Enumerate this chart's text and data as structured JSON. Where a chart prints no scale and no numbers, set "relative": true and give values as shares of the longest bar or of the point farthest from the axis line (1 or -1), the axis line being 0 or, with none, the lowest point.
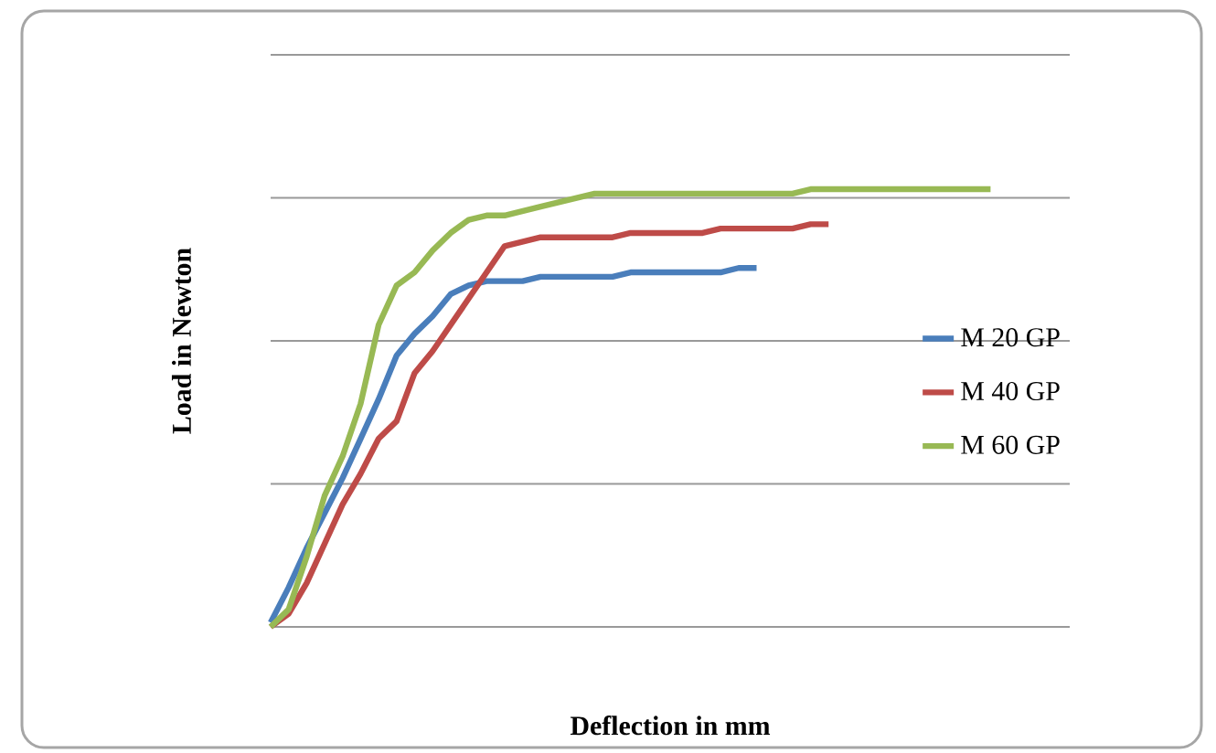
{
  "chart_data": {
    "type": "line",
    "relative": true,
    "xlabel": "Deflection in mm",
    "ylabel": "Load in Newton",
    "categories": [
      null,
      null,
      null,
      null,
      null,
      null,
      null,
      null,
      null,
      null,
      null,
      null,
      null,
      null,
      null,
      null,
      null,
      null,
      null,
      null,
      null,
      null,
      null,
      null,
      null,
      null,
      null,
      null,
      null,
      null,
      null,
      null,
      null,
      null,
      null,
      null,
      null,
      null,
      null,
      null,
      null
    ],
    "series": [
      {
        "name": "M 20 GP",
        "color": "#4a7ebb",
        "values": [
          0.01,
          0.09,
          0.18,
          0.26,
          0.34,
          0.43,
          0.52,
          0.62,
          0.67,
          0.71,
          0.76,
          0.78,
          0.79,
          0.79,
          0.79,
          0.8,
          0.8,
          0.8,
          0.8,
          0.8,
          0.81,
          0.81,
          0.81,
          0.81,
          0.81,
          0.81,
          0.82,
          0.82,
          null,
          null,
          null,
          null,
          null,
          null,
          null,
          null,
          null,
          null,
          null,
          null,
          null
        ]
      },
      {
        "name": "M 40 GP",
        "color": "#be4b48",
        "values": [
          0,
          0.03,
          0.1,
          0.19,
          0.28,
          0.35,
          0.43,
          0.47,
          0.58,
          0.63,
          0.69,
          0.75,
          0.81,
          0.87,
          0.88,
          0.89,
          0.89,
          0.89,
          0.89,
          0.89,
          0.9,
          0.9,
          0.9,
          0.9,
          0.9,
          0.91,
          0.91,
          0.91,
          0.91,
          0.91,
          0.92,
          0.92,
          null,
          null,
          null,
          null,
          null,
          null,
          null,
          null,
          null
        ]
      },
      {
        "name": "M 60 GP",
        "color": "#98b954",
        "values": [
          0,
          0.04,
          0.16,
          0.3,
          0.39,
          0.51,
          0.69,
          0.78,
          0.81,
          0.86,
          0.9,
          0.93,
          0.94,
          0.94,
          0.95,
          0.96,
          0.97,
          0.98,
          0.99,
          0.99,
          0.99,
          0.99,
          0.99,
          0.99,
          0.99,
          0.99,
          0.99,
          0.99,
          0.99,
          0.99,
          1.0,
          1.0,
          1.0,
          1.0,
          1.0,
          1.0,
          1.0,
          1.0,
          1.0,
          1.0,
          1.0
        ]
      }
    ],
    "grid": "y",
    "legend": "right",
    "line_style": "solid",
    "marker": "none"
  }
}
